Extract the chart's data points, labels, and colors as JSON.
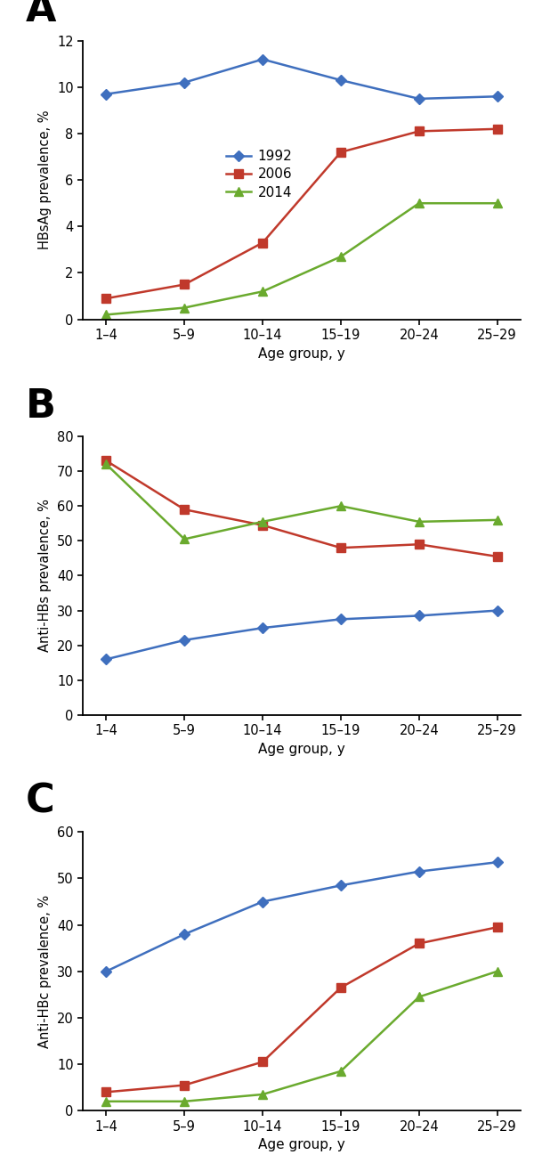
{
  "age_groups": [
    "1–4",
    "5–9",
    "10–14",
    "15–19",
    "20–24",
    "25–29"
  ],
  "panel_A": {
    "title": "A",
    "ylabel": "HBsAg prevalence, %",
    "xlabel": "Age group, y",
    "ylim": [
      0,
      12
    ],
    "yticks": [
      0,
      2,
      4,
      6,
      8,
      10,
      12
    ],
    "series": {
      "1992": [
        9.7,
        10.2,
        11.2,
        10.3,
        9.5,
        9.6
      ],
      "2006": [
        0.9,
        1.5,
        3.3,
        7.2,
        8.1,
        8.2
      ],
      "2014": [
        0.2,
        0.5,
        1.2,
        2.7,
        5.0,
        5.0
      ]
    }
  },
  "panel_B": {
    "title": "B",
    "ylabel": "Anti-HBs prevalence, %",
    "xlabel": "Age group, y",
    "ylim": [
      0,
      80
    ],
    "yticks": [
      0,
      10,
      20,
      30,
      40,
      50,
      60,
      70,
      80
    ],
    "series": {
      "1992": [
        16.0,
        21.5,
        25.0,
        27.5,
        28.5,
        30.0
      ],
      "2006": [
        73.0,
        59.0,
        54.5,
        48.0,
        49.0,
        45.5
      ],
      "2014": [
        72.0,
        50.5,
        55.5,
        60.0,
        55.5,
        56.0
      ]
    }
  },
  "panel_C": {
    "title": "C",
    "ylabel": "Anti-HBc prevalence, %",
    "xlabel": "Age group, y",
    "ylim": [
      0,
      60
    ],
    "yticks": [
      0,
      10,
      20,
      30,
      40,
      50,
      60
    ],
    "series": {
      "1992": [
        30.0,
        38.0,
        45.0,
        48.5,
        51.5,
        53.5
      ],
      "2006": [
        4.0,
        5.5,
        10.5,
        26.5,
        36.0,
        39.5
      ],
      "2014": [
        2.0,
        2.0,
        3.5,
        8.5,
        24.5,
        30.0
      ]
    }
  },
  "colors": {
    "1992": "#3f6fbe",
    "2006": "#c0392b",
    "2014": "#6aaa2e"
  },
  "markers": {
    "1992": "D",
    "2006": "s",
    "2014": "^"
  },
  "legend_labels": [
    "1992",
    "2006",
    "2014"
  ],
  "line_width": 1.8,
  "marker_size_diamond": 6,
  "marker_size_square": 7,
  "marker_size_triangle": 7
}
